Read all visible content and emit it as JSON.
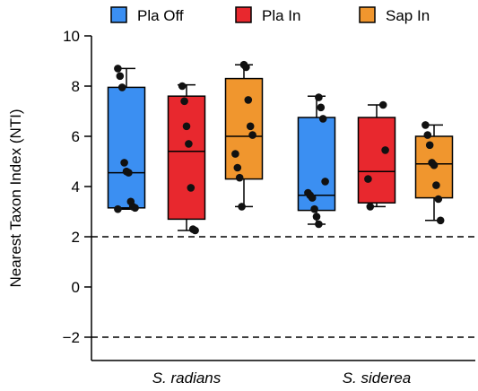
{
  "chart_data": {
    "type": "box",
    "xlabel": "",
    "ylabel": "Nearest Taxon Index (NTI)",
    "ylim": [
      -3,
      10
    ],
    "yticks": [
      -2,
      0,
      2,
      4,
      6,
      8,
      10
    ],
    "ytick_labels": [
      "−2",
      "0",
      "2",
      "4",
      "6",
      "8",
      "10"
    ],
    "reference_lines": [
      2,
      -2
    ],
    "categories": [
      {
        "label": "S. radians",
        "italic": true
      },
      {
        "label": "S. siderea",
        "italic": true
      }
    ],
    "series": [
      {
        "name": "Pla Off",
        "color": "#3b8ff2",
        "boxes": [
          {
            "min": 3.1,
            "q1": 3.15,
            "median": 4.55,
            "q3": 7.95,
            "max": 8.7,
            "points": [
              8.7,
              8.4,
              7.95,
              4.95,
              4.6,
              4.55,
              3.4,
              3.2,
              3.15,
              3.1
            ]
          },
          {
            "min": 2.5,
            "q1": 3.05,
            "median": 3.65,
            "q3": 6.75,
            "max": 7.6,
            "points": [
              7.55,
              7.15,
              6.7,
              4.2,
              3.75,
              3.65,
              3.55,
              3.1,
              2.8,
              2.5
            ]
          }
        ]
      },
      {
        "name": "Pla In",
        "color": "#e8282e",
        "boxes": [
          {
            "min": 2.25,
            "q1": 2.7,
            "median": 5.4,
            "q3": 7.6,
            "max": 8.05,
            "points": [
              8.0,
              7.4,
              6.4,
              5.7,
              3.95,
              2.3,
              2.25
            ]
          },
          {
            "min": 3.2,
            "q1": 3.35,
            "median": 4.6,
            "q3": 6.75,
            "max": 7.25,
            "points": [
              7.25,
              5.45,
              4.3,
              3.2
            ]
          }
        ]
      },
      {
        "name": "Sap In",
        "color": "#f0962e",
        "boxes": [
          {
            "min": 3.2,
            "q1": 4.3,
            "median": 6.0,
            "q3": 8.3,
            "max": 8.85,
            "points": [
              8.85,
              8.75,
              7.45,
              6.4,
              6.05,
              5.3,
              4.75,
              4.35,
              3.2
            ]
          },
          {
            "min": 2.65,
            "q1": 3.55,
            "median": 4.9,
            "q3": 6.0,
            "max": 6.45,
            "points": [
              6.45,
              6.05,
              5.65,
              4.95,
              4.85,
              4.05,
              3.5,
              2.65
            ]
          }
        ]
      }
    ],
    "legend_position": "top"
  }
}
